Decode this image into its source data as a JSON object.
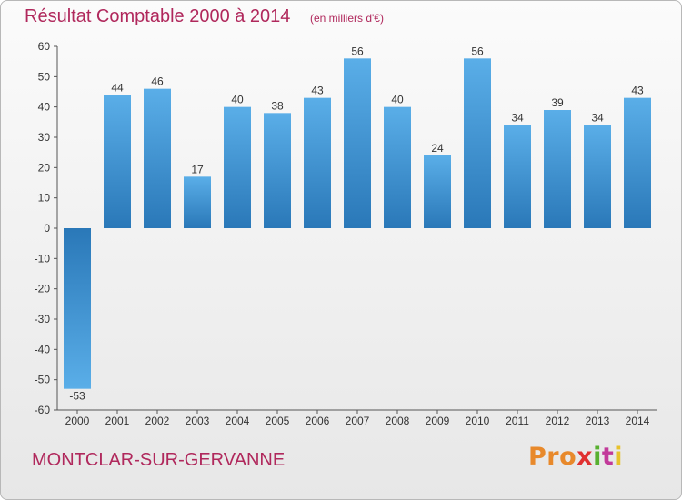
{
  "title": "Résultat Comptable 2000 à 2014",
  "subtitle": "(en milliers d'€)",
  "commune": "MONTCLAR-SUR-GERVANNE",
  "logo": [
    "Pro",
    "x",
    "i",
    "t",
    "i"
  ],
  "colors": {
    "bar_light": "#5aaee8",
    "bar_dark": "#2a78b8",
    "title": "#b0285c"
  },
  "chart_data": {
    "type": "bar",
    "categories": [
      "2000",
      "2001",
      "2002",
      "2003",
      "2004",
      "2005",
      "2006",
      "2007",
      "2008",
      "2009",
      "2010",
      "2011",
      "2012",
      "2013",
      "2014"
    ],
    "values": [
      -53,
      44,
      46,
      17,
      40,
      38,
      43,
      56,
      40,
      24,
      56,
      34,
      39,
      34,
      43
    ],
    "ylim": [
      -60,
      60
    ],
    "yticks": [
      60,
      50,
      40,
      30,
      20,
      10,
      0,
      -10,
      -20,
      -30,
      -40,
      -50,
      -60
    ],
    "grid": false,
    "legend": "none"
  }
}
